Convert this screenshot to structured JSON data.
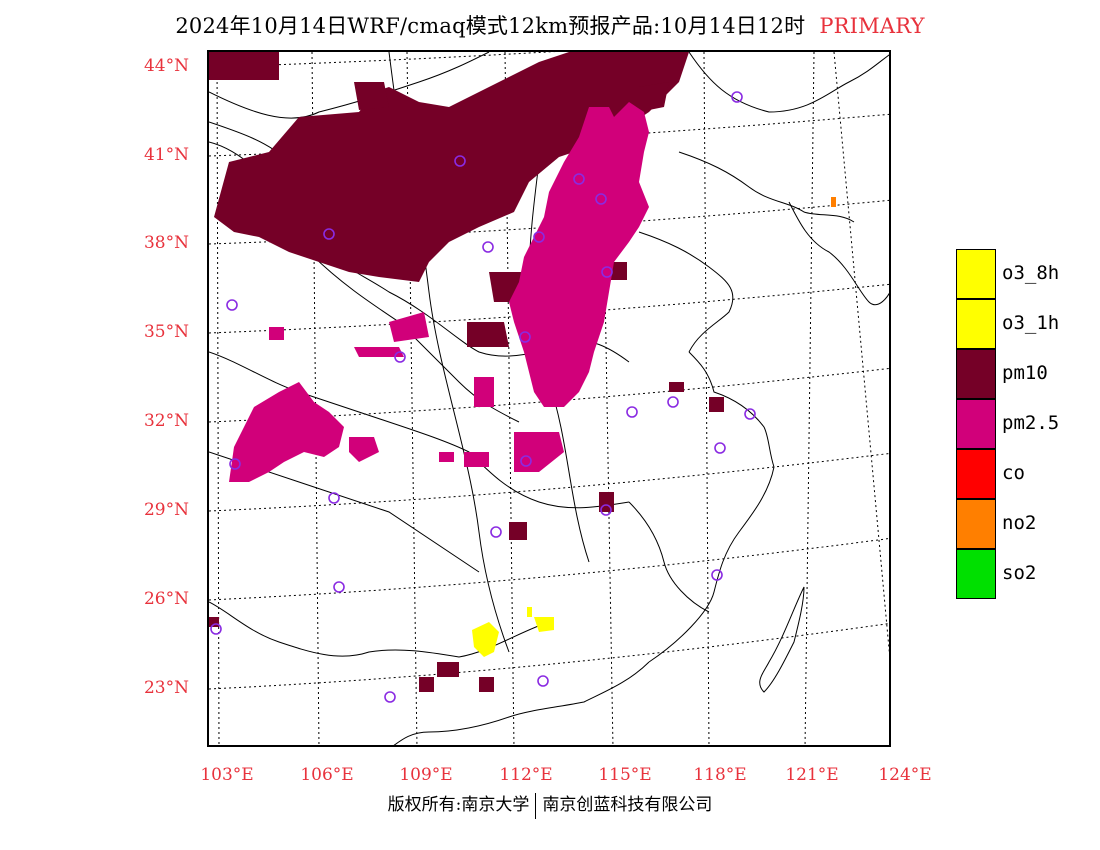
{
  "title": {
    "main": "2024年10月14日WRF/cmaq模式12km预报产品:10月14日12时",
    "tag": "PRIMARY"
  },
  "axes": {
    "lat_labels": [
      "44°N",
      "41°N",
      "38°N",
      "35°N",
      "32°N",
      "29°N",
      "26°N",
      "23°N"
    ],
    "lon_labels": [
      "103°E",
      "106°E",
      "109°E",
      "112°E",
      "115°E",
      "118°E",
      "121°E",
      "124°E"
    ]
  },
  "legend": {
    "items": [
      {
        "label": "o3_8h",
        "color": "#ffff00"
      },
      {
        "label": "o3_1h",
        "color": "#ffff00"
      },
      {
        "label": "pm10",
        "color": "#750027"
      },
      {
        "label": "pm2.5",
        "color": "#d1007a"
      },
      {
        "label": "co",
        "color": "#ff0000"
      },
      {
        "label": "no2",
        "color": "#ff7f00"
      },
      {
        "label": "so2",
        "color": "#00e000"
      }
    ]
  },
  "copyright": {
    "left": "版权所有:南京大学",
    "right": "南京创蓝科技有限公司"
  },
  "colors": {
    "pm10": "#750027",
    "pm25": "#d1007a",
    "o3": "#ffff00",
    "no2": "#ff7f00",
    "station": "#8a2be2",
    "label_red": "#e8323c"
  }
}
